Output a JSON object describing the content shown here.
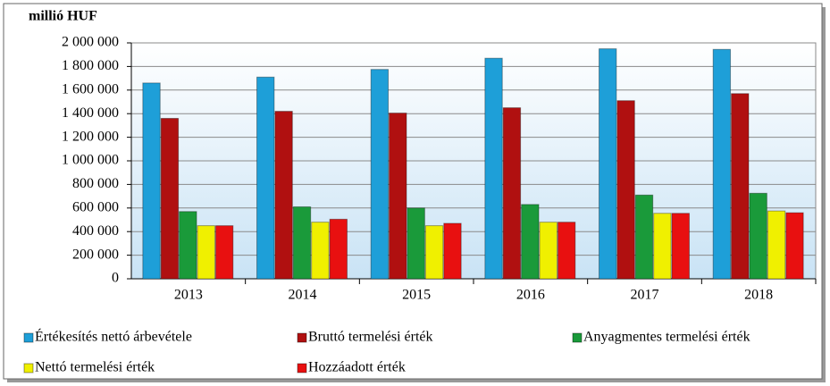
{
  "chart_data": {
    "type": "bar",
    "y_label": "millió HUF",
    "categories": [
      "2013",
      "2014",
      "2015",
      "2016",
      "2017",
      "2018"
    ],
    "series": [
      {
        "name": "Értékesítés nettó árbevétele",
        "color": "#1e9fd8",
        "values": [
          1660000,
          1710000,
          1775000,
          1870000,
          1950000,
          1945000
        ]
      },
      {
        "name": "Bruttó termelési érték",
        "color": "#b01010",
        "values": [
          1360000,
          1420000,
          1405000,
          1450000,
          1510000,
          1570000
        ]
      },
      {
        "name": "Anyagmentes termelési érték",
        "color": "#1a9a3a",
        "values": [
          570000,
          610000,
          600000,
          630000,
          710000,
          725000
        ]
      },
      {
        "name": "Nettó termelési érték",
        "color": "#f0f000",
        "values": [
          450000,
          480000,
          450000,
          480000,
          555000,
          575000
        ]
      },
      {
        "name": "Hozzáadott érték",
        "color": "#e81010",
        "values": [
          450000,
          505000,
          470000,
          480000,
          555000,
          560000
        ]
      }
    ],
    "ylim": [
      0,
      2000000
    ],
    "yticks": [
      0,
      {
        "value": 200000,
        "label": "200 000"
      },
      {
        "value": 400000,
        "label": "400 000"
      },
      {
        "value": 600000,
        "label": "600 000"
      },
      {
        "value": 800000,
        "label": "800 000"
      },
      {
        "value": 1000000,
        "label": "1 000 000"
      },
      {
        "value": 1200000,
        "label": "1 200 000"
      },
      {
        "value": 1400000,
        "label": "1 400 000"
      },
      {
        "value": 1600000,
        "label": "1 600 000"
      },
      {
        "value": 1800000,
        "label": "1 800 000"
      },
      {
        "value": 2000000,
        "label": "2 000 000"
      }
    ],
    "grid": true,
    "legend": "bottom"
  }
}
